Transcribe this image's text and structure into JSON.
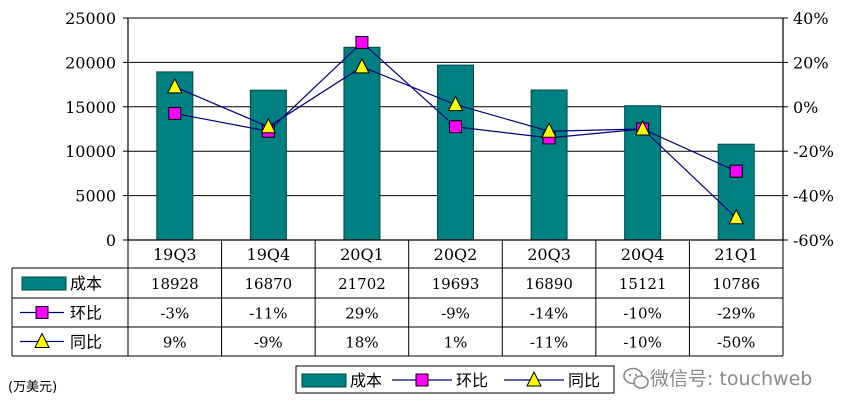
{
  "chart_data": {
    "type": "bar",
    "categories": [
      "19Q3",
      "19Q4",
      "20Q1",
      "20Q2",
      "20Q3",
      "20Q4",
      "21Q1"
    ],
    "y_left": {
      "range": [
        0,
        25000
      ],
      "ticks": [
        "0",
        "5000",
        "10000",
        "15000",
        "20000",
        "25000"
      ]
    },
    "y_right": {
      "range": [
        -60,
        40
      ],
      "ticks": [
        "-60%",
        "-40%",
        "-20%",
        "0%",
        "20%",
        "40%"
      ]
    },
    "grid": true,
    "legend_position": "bottom",
    "series": [
      {
        "name": "成本",
        "kind": "bar",
        "axis": "left",
        "values": [
          18928,
          16870,
          21702,
          19693,
          16890,
          15121,
          10786
        ],
        "labels": [
          "18928",
          "16870",
          "21702",
          "19693",
          "16890",
          "15121",
          "10786"
        ]
      },
      {
        "name": "环比",
        "kind": "line",
        "axis": "right",
        "marker": "square",
        "values": [
          -3,
          -11,
          29,
          -9,
          -14,
          -10,
          -29
        ],
        "labels": [
          "-3%",
          "-11%",
          "29%",
          "-9%",
          "-14%",
          "-10%",
          "-29%"
        ]
      },
      {
        "name": "同比",
        "kind": "line",
        "axis": "right",
        "marker": "triangle",
        "values": [
          9,
          -9,
          18,
          1,
          -11,
          -10,
          -50
        ],
        "labels": [
          "9%",
          "-9%",
          "18%",
          "1%",
          "-11%",
          "-10%",
          "-50%"
        ]
      }
    ],
    "unit_note": "(万美元)"
  },
  "colors": {
    "bar": "#008080",
    "bar_edge": "#004848",
    "qoq_marker": "#ff00ff",
    "yoy_marker": "#ffff00",
    "line": "#000080"
  },
  "watermark": {
    "icon": "wechat-icon",
    "text": "微信号: touchweb"
  }
}
